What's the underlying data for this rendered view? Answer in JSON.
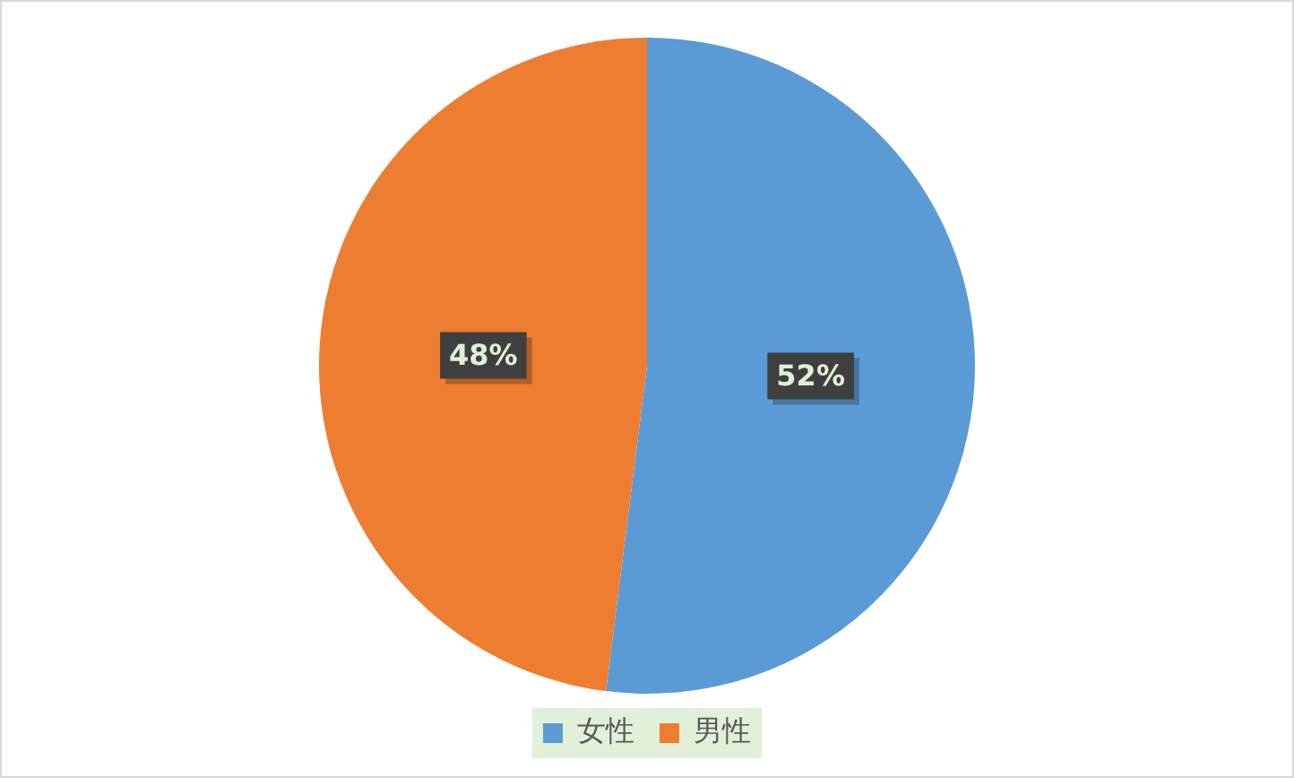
{
  "chart_data": {
    "type": "pie",
    "categories": [
      "女性",
      "男性"
    ],
    "values": [
      52,
      48
    ],
    "colors": [
      "#5b9bd5",
      "#ed7d31"
    ],
    "value_labels": [
      "52%",
      "48%"
    ],
    "legend": "bottom"
  }
}
